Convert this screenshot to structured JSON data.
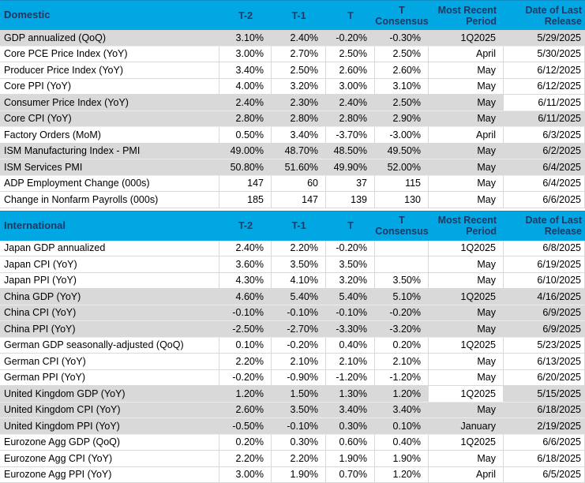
{
  "theme": {
    "header_bg": "#00A7E3",
    "header_text": "#1F3864",
    "row_gray": "#D9D9D9",
    "row_white": "#FFFFFF",
    "grid_line": "#D9D9D9",
    "body_text": "#000000"
  },
  "columns": [
    {
      "id": "t2",
      "line1": "T-2",
      "line2": ""
    },
    {
      "id": "t1",
      "line1": "T-1",
      "line2": ""
    },
    {
      "id": "t",
      "line1": "T",
      "line2": ""
    },
    {
      "id": "cons",
      "line1": "T",
      "line2": "Consensus"
    },
    {
      "id": "period",
      "line1": "Most Recent",
      "line2": "Period"
    },
    {
      "id": "date",
      "line1": "Date of Last",
      "line2": "Release"
    }
  ],
  "sections": [
    {
      "title": "Domestic",
      "rows": [
        {
          "label": "GDP annualized (QoQ)",
          "t2": "3.10%",
          "t1": "2.40%",
          "t": "-0.20%",
          "cons": "-0.30%",
          "period": "1Q2025",
          "date": "5/29/2025",
          "shade": "gray",
          "white_cells": []
        },
        {
          "label": "Core PCE Price Index (YoY)",
          "t2": "3.00%",
          "t1": "2.70%",
          "t": "2.50%",
          "cons": "2.50%",
          "period": "April",
          "date": "5/30/2025",
          "shade": "white",
          "white_cells": []
        },
        {
          "label": "Producer Price Index (YoY)",
          "t2": "3.40%",
          "t1": "2.50%",
          "t": "2.60%",
          "cons": "2.60%",
          "period": "May",
          "date": "6/12/2025",
          "shade": "white",
          "white_cells": []
        },
        {
          "label": "Core PPI (YoY)",
          "t2": "4.00%",
          "t1": "3.20%",
          "t": "3.00%",
          "cons": "3.10%",
          "period": "May",
          "date": "6/12/2025",
          "shade": "white",
          "white_cells": []
        },
        {
          "label": "Consumer Price Index (YoY)",
          "t2": "2.40%",
          "t1": "2.30%",
          "t": "2.40%",
          "cons": "2.50%",
          "period": "May",
          "date": "6/11/2025",
          "shade": "gray",
          "white_cells": [
            "date"
          ]
        },
        {
          "label": "Core CPI  (YoY)",
          "t2": "2.80%",
          "t1": "2.80%",
          "t": "2.80%",
          "cons": "2.90%",
          "period": "May",
          "date": "6/11/2025",
          "shade": "gray",
          "white_cells": []
        },
        {
          "label": "Factory Orders (MoM)",
          "t2": "0.50%",
          "t1": "3.40%",
          "t": "-3.70%",
          "cons": "-3.00%",
          "period": "April",
          "date": "6/3/2025",
          "shade": "white",
          "white_cells": []
        },
        {
          "label": "ISM Manufacturing Index - PMI",
          "t2": "49.00%",
          "t1": "48.70%",
          "t": "48.50%",
          "cons": "49.50%",
          "period": "May",
          "date": "6/2/2025",
          "shade": "gray",
          "white_cells": []
        },
        {
          "label": "ISM Services PMI",
          "t2": "50.80%",
          "t1": "51.60%",
          "t": "49.90%",
          "cons": "52.00%",
          "period": "May",
          "date": "6/4/2025",
          "shade": "gray",
          "white_cells": []
        },
        {
          "label": "ADP Employment Change (000s)",
          "t2": "147",
          "t1": "60",
          "t": "37",
          "cons": "115",
          "period": "May",
          "date": "6/4/2025",
          "shade": "white",
          "white_cells": []
        },
        {
          "label": "Change in Nonfarm Payrolls (000s)",
          "t2": "185",
          "t1": "147",
          "t": "139",
          "cons": "130",
          "period": "May",
          "date": "6/6/2025",
          "shade": "white",
          "white_cells": []
        }
      ]
    },
    {
      "title": "International",
      "rows": [
        {
          "label": "Japan GDP annualized",
          "t2": "2.40%",
          "t1": "2.20%",
          "t": "-0.20%",
          "cons": "",
          "period": "1Q2025",
          "date": "6/8/2025",
          "shade": "white",
          "white_cells": []
        },
        {
          "label": "Japan CPI (YoY)",
          "t2": "3.60%",
          "t1": "3.50%",
          "t": "3.50%",
          "cons": "",
          "period": "May",
          "date": "6/19/2025",
          "shade": "white",
          "white_cells": []
        },
        {
          "label": "Japan PPI (YoY)",
          "t2": "4.30%",
          "t1": "4.10%",
          "t": "3.20%",
          "cons": "3.50%",
          "period": "May",
          "date": "6/10/2025",
          "shade": "white",
          "white_cells": []
        },
        {
          "label": "China GDP (YoY)",
          "t2": "4.60%",
          "t1": "5.40%",
          "t": "5.40%",
          "cons": "5.10%",
          "period": "1Q2025",
          "date": "4/16/2025",
          "shade": "gray",
          "white_cells": []
        },
        {
          "label": "China CPI (YoY)",
          "t2": "-0.10%",
          "t1": "-0.10%",
          "t": "-0.10%",
          "cons": "-0.20%",
          "period": "May",
          "date": "6/9/2025",
          "shade": "gray",
          "white_cells": []
        },
        {
          "label": "China PPI (YoY)",
          "t2": "-2.50%",
          "t1": "-2.70%",
          "t": "-3.30%",
          "cons": "-3.20%",
          "period": "May",
          "date": "6/9/2025",
          "shade": "gray",
          "white_cells": []
        },
        {
          "label": "German GDP seasonally-adjusted (QoQ)",
          "t2": "0.10%",
          "t1": "-0.20%",
          "t": "0.40%",
          "cons": "0.20%",
          "period": "1Q2025",
          "date": "5/23/2025",
          "shade": "white",
          "white_cells": []
        },
        {
          "label": "German CPI (YoY)",
          "t2": "2.20%",
          "t1": "2.10%",
          "t": "2.10%",
          "cons": "2.10%",
          "period": "May",
          "date": "6/13/2025",
          "shade": "white",
          "white_cells": []
        },
        {
          "label": "German PPI (YoY)",
          "t2": "-0.20%",
          "t1": "-0.90%",
          "t": "-1.20%",
          "cons": "-1.20%",
          "period": "May",
          "date": "6/20/2025",
          "shade": "white",
          "white_cells": []
        },
        {
          "label": "United Kingdom GDP (YoY)",
          "t2": "1.20%",
          "t1": "1.50%",
          "t": "1.30%",
          "cons": "1.20%",
          "period": "1Q2025",
          "date": "5/15/2025",
          "shade": "gray",
          "white_cells": [
            "period"
          ]
        },
        {
          "label": "United Kingdom CPI (YoY)",
          "t2": "2.60%",
          "t1": "3.50%",
          "t": "3.40%",
          "cons": "3.40%",
          "period": "May",
          "date": "6/18/2025",
          "shade": "gray",
          "white_cells": []
        },
        {
          "label": "United Kingdom  PPI (YoY)",
          "t2": "-0.50%",
          "t1": "-0.10%",
          "t": "0.30%",
          "cons": "0.10%",
          "period": "January",
          "date": "2/19/2025",
          "shade": "gray",
          "white_cells": []
        },
        {
          "label": "Eurozone Agg GDP (QoQ)",
          "t2": "0.20%",
          "t1": "0.30%",
          "t": "0.60%",
          "cons": "0.40%",
          "period": "1Q2025",
          "date": "6/6/2025",
          "shade": "white",
          "white_cells": []
        },
        {
          "label": "Eurozone Agg CPI (YoY)",
          "t2": "2.20%",
          "t1": "2.20%",
          "t": "1.90%",
          "cons": "1.90%",
          "period": "May",
          "date": "6/18/2025",
          "shade": "white",
          "white_cells": []
        },
        {
          "label": "Eurozone Agg PPI (YoY)",
          "t2": "3.00%",
          "t1": "1.90%",
          "t": "0.70%",
          "cons": "1.20%",
          "period": "April",
          "date": "6/5/2025",
          "shade": "white",
          "white_cells": []
        }
      ]
    }
  ]
}
